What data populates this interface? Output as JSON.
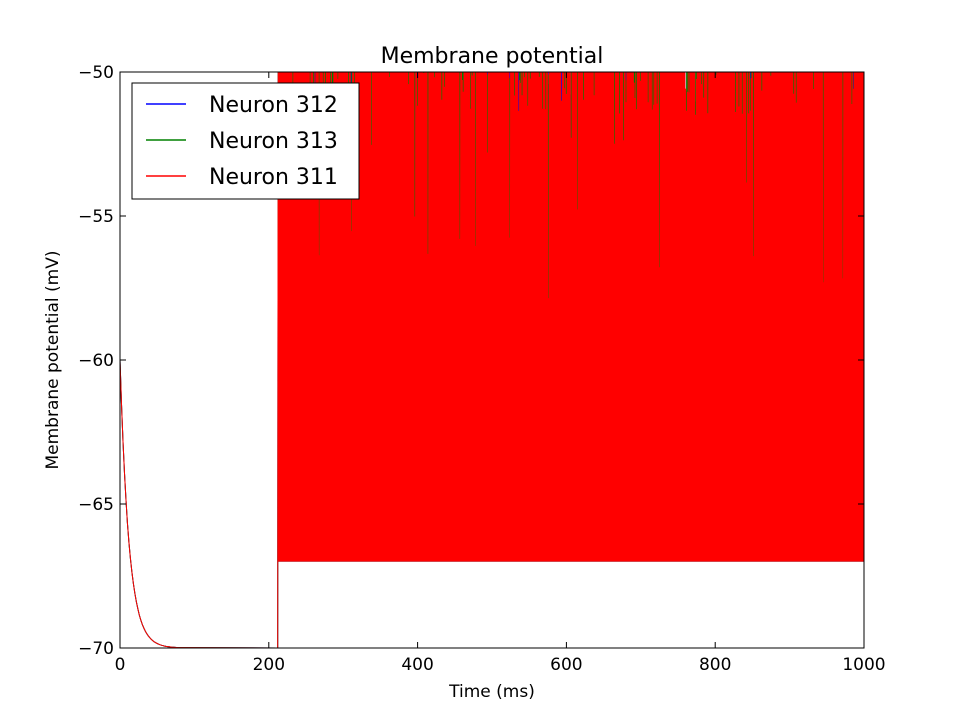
{
  "chart_data": {
    "type": "line",
    "title": "Membrane potential",
    "xlabel": "Time (ms)",
    "ylabel": "Membrane potential (mV)",
    "xlim": [
      0,
      1000
    ],
    "ylim": [
      -70,
      -50
    ],
    "xticks": [
      0,
      200,
      400,
      600,
      800,
      1000
    ],
    "xtick_labels": [
      "0",
      "200",
      "400",
      "600",
      "800",
      "1000"
    ],
    "yticks": [
      -70,
      -65,
      -60,
      -55,
      -50
    ],
    "ytick_labels": [
      "−70",
      "−65",
      "−60",
      "−55",
      "−50"
    ],
    "grid": false,
    "legend_position": "top-left",
    "series": [
      {
        "name": "Neuron 312",
        "color": "#0000ff"
      },
      {
        "name": "Neuron 313",
        "color": "#008000"
      },
      {
        "name": "Neuron 311",
        "color": "#ff0000"
      }
    ],
    "resting_potential": -60,
    "reset_potential": -70,
    "decay_end_time": 80,
    "stimulus_onset": 212,
    "trough_potential": -67,
    "spike_threshold": -50
  }
}
